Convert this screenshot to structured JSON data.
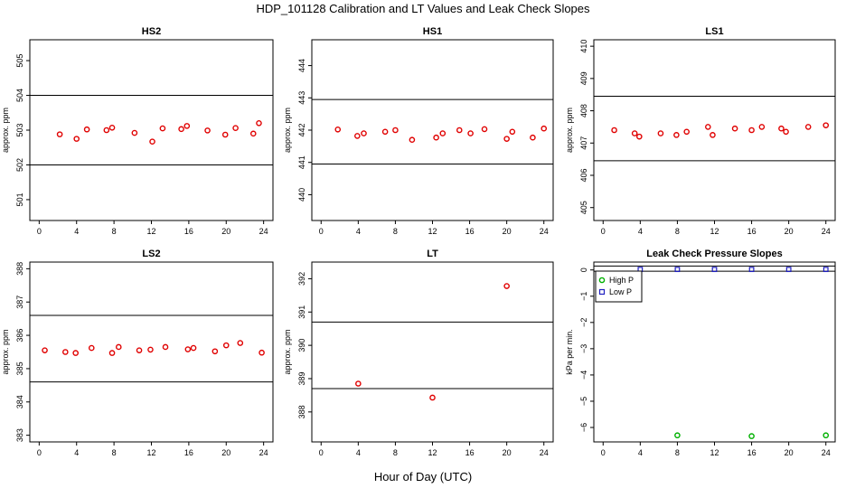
{
  "figure": {
    "title": "HDP_101128  Calibration and LT Values and Leak Check Slopes",
    "xlabel": "Hour of Day (UTC)"
  },
  "chart_data": [
    {
      "type": "scatter",
      "title": "HS2",
      "ylabel": "approx. ppm",
      "xlim": [
        -1,
        25
      ],
      "ylim": [
        500.4,
        505.6
      ],
      "xticks": [
        0,
        4,
        8,
        12,
        16,
        20,
        24
      ],
      "yticks": [
        501,
        502,
        503,
        504,
        505
      ],
      "hlines": [
        504.0,
        502.0
      ],
      "series": [
        {
          "color": "#e00000",
          "marker": "circle",
          "x": [
            2.2,
            4.0,
            5.1,
            7.2,
            7.8,
            10.2,
            12.1,
            13.2,
            15.2,
            15.8,
            18.0,
            19.9,
            21.0,
            22.9,
            23.5
          ],
          "y": [
            502.88,
            502.75,
            503.02,
            503.0,
            503.07,
            502.92,
            502.67,
            503.05,
            503.03,
            503.12,
            502.99,
            502.87,
            503.06,
            502.9,
            503.2
          ]
        }
      ]
    },
    {
      "type": "scatter",
      "title": "HS1",
      "ylabel": "approx. ppm",
      "xlim": [
        -1,
        25
      ],
      "ylim": [
        439.2,
        444.8
      ],
      "xticks": [
        0,
        4,
        8,
        12,
        16,
        20,
        24
      ],
      "yticks": [
        440,
        441,
        442,
        443,
        444
      ],
      "hlines": [
        442.95,
        440.95
      ],
      "series": [
        {
          "color": "#e00000",
          "marker": "circle",
          "x": [
            1.8,
            3.9,
            4.6,
            6.9,
            8.0,
            9.8,
            12.4,
            13.1,
            14.9,
            16.1,
            17.6,
            20.0,
            20.6,
            22.8,
            24.0
          ],
          "y": [
            442.02,
            441.82,
            441.9,
            441.95,
            442.0,
            441.7,
            441.77,
            441.9,
            442.0,
            441.9,
            442.03,
            441.73,
            441.95,
            441.77,
            442.05
          ]
        }
      ]
    },
    {
      "type": "scatter",
      "title": "LS1",
      "ylabel": "approx. ppm",
      "xlim": [
        -1,
        25
      ],
      "ylim": [
        404.6,
        410.2
      ],
      "xticks": [
        0,
        4,
        8,
        12,
        16,
        20,
        24
      ],
      "yticks": [
        405,
        406,
        407,
        408,
        409,
        410
      ],
      "hlines": [
        408.45,
        406.45
      ],
      "series": [
        {
          "color": "#e00000",
          "marker": "circle",
          "x": [
            1.2,
            3.4,
            3.9,
            6.2,
            7.9,
            9.0,
            11.3,
            11.8,
            14.2,
            16.0,
            17.1,
            19.2,
            19.7,
            22.1,
            24.0
          ],
          "y": [
            407.4,
            407.3,
            407.2,
            407.3,
            407.25,
            407.35,
            407.5,
            407.25,
            407.45,
            407.4,
            407.5,
            407.45,
            407.35,
            407.5,
            407.55
          ]
        }
      ]
    },
    {
      "type": "scatter",
      "title": "LS2",
      "ylabel": "approx. ppm",
      "xlim": [
        -1,
        25
      ],
      "ylim": [
        382.8,
        388.2
      ],
      "xticks": [
        0,
        4,
        8,
        12,
        16,
        20,
        24
      ],
      "yticks": [
        383,
        384,
        385,
        386,
        387,
        388
      ],
      "hlines": [
        386.6,
        384.6
      ],
      "series": [
        {
          "color": "#e00000",
          "marker": "circle",
          "x": [
            0.6,
            2.8,
            3.9,
            5.6,
            7.8,
            8.5,
            10.7,
            11.9,
            13.5,
            15.9,
            16.5,
            18.8,
            20.0,
            21.5,
            23.8
          ],
          "y": [
            385.55,
            385.5,
            385.47,
            385.62,
            385.47,
            385.65,
            385.55,
            385.57,
            385.65,
            385.58,
            385.62,
            385.52,
            385.7,
            385.77,
            385.48
          ]
        }
      ]
    },
    {
      "type": "scatter",
      "title": "LT",
      "ylabel": "approx. ppm",
      "xlim": [
        -1,
        25
      ],
      "ylim": [
        387.1,
        392.5
      ],
      "xticks": [
        0,
        4,
        8,
        12,
        16,
        20,
        24
      ],
      "yticks": [
        388,
        389,
        390,
        391,
        392
      ],
      "hlines": [
        390.7,
        388.7
      ],
      "series": [
        {
          "color": "#e00000",
          "marker": "circle",
          "x": [
            4.0,
            12.0,
            20.0
          ],
          "y": [
            388.85,
            388.43,
            391.78
          ]
        }
      ]
    },
    {
      "type": "scatter",
      "title": "Leak Check Pressure Slopes",
      "ylabel": "kPa per min.",
      "xlim": [
        -1,
        25
      ],
      "ylim": [
        -6.55,
        0.3
      ],
      "xticks": [
        0,
        4,
        8,
        12,
        16,
        20,
        24
      ],
      "yticks": [
        0,
        -1,
        -2,
        -3,
        -4,
        -5,
        -6
      ],
      "ytick_labels": [
        "0",
        "−1",
        "−2",
        "−3",
        "−4",
        "−5",
        "−6"
      ],
      "hlines": [
        0.15,
        -0.05
      ],
      "legend": {
        "position": "top-left"
      },
      "series": [
        {
          "name": "High P",
          "color": "#00b000",
          "marker": "circle",
          "x": [
            8,
            16,
            24
          ],
          "y": [
            -6.3,
            -6.33,
            -6.3
          ]
        },
        {
          "name": "Low P",
          "color": "#2020c0",
          "marker": "square",
          "x": [
            4,
            8,
            12,
            16,
            20,
            24
          ],
          "y": [
            0.02,
            0.02,
            0.02,
            0.02,
            0.02,
            0.02
          ]
        }
      ]
    }
  ]
}
